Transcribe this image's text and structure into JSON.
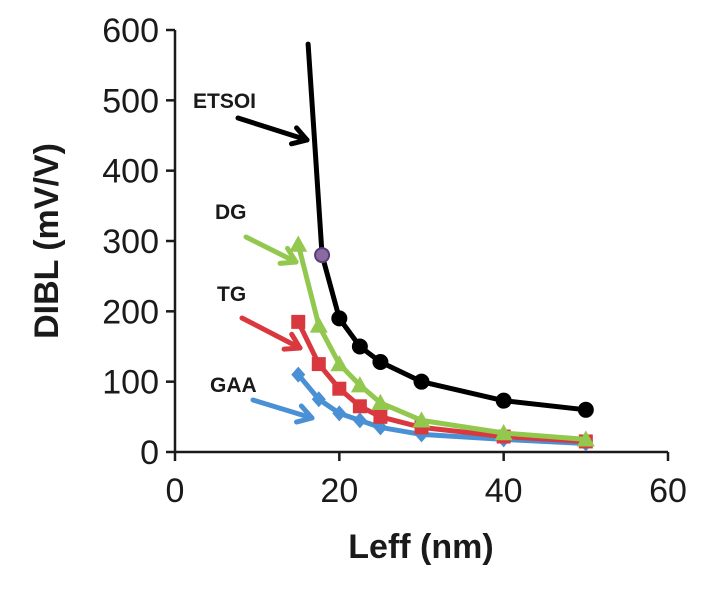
{
  "chart_data": {
    "type": "line",
    "xlabel": "Leff (nm)",
    "ylabel": "DIBL (mV/V)",
    "xlim": [
      0,
      60
    ],
    "ylim": [
      0,
      600
    ],
    "xticks": [
      0,
      20,
      40,
      60
    ],
    "yticks": [
      0,
      100,
      200,
      300,
      400,
      500,
      600
    ],
    "x_tick_labels": [
      "0",
      "20",
      "40",
      "60"
    ],
    "y_tick_labels": [
      "0",
      "100",
      "200",
      "300",
      "400",
      "500",
      "600"
    ],
    "grid": false,
    "legend": "none",
    "series": [
      {
        "name": "ETSOI",
        "color": "#000000",
        "marker": "circle",
        "x": [
          17.9,
          20,
          22.5,
          25,
          30,
          40,
          50
        ],
        "y": [
          280,
          190,
          150,
          128,
          100,
          73,
          60
        ],
        "curve_extension": {
          "x": [
            16.2,
            17.0,
            17.9
          ],
          "y": [
            580,
            440,
            280
          ]
        }
      },
      {
        "name": "DG",
        "color": "#92c84e",
        "marker": "triangle",
        "x": [
          15,
          17.5,
          20,
          22.5,
          25,
          30,
          40,
          50
        ],
        "y": [
          295,
          180,
          125,
          95,
          70,
          45,
          27,
          18
        ]
      },
      {
        "name": "TG",
        "color": "#d9393e",
        "marker": "square",
        "x": [
          15,
          17.5,
          20,
          22.5,
          25,
          30,
          40,
          50
        ],
        "y": [
          185,
          125,
          90,
          65,
          50,
          35,
          22,
          15
        ]
      },
      {
        "name": "GAA",
        "color": "#4a90d4",
        "marker": "diamond",
        "x": [
          15,
          17.5,
          20,
          22.5,
          25,
          30,
          40,
          50
        ],
        "y": [
          110,
          75,
          55,
          45,
          35,
          25,
          18,
          12
        ]
      }
    ],
    "annotations": [
      {
        "text": "ETSOI",
        "series": "ETSOI",
        "color": "#000000"
      },
      {
        "text": "DG",
        "series": "DG",
        "color": "#92c84e"
      },
      {
        "text": "TG",
        "series": "TG",
        "color": "#d9393e"
      },
      {
        "text": "GAA",
        "series": "GAA",
        "color": "#4a90d4"
      }
    ]
  }
}
